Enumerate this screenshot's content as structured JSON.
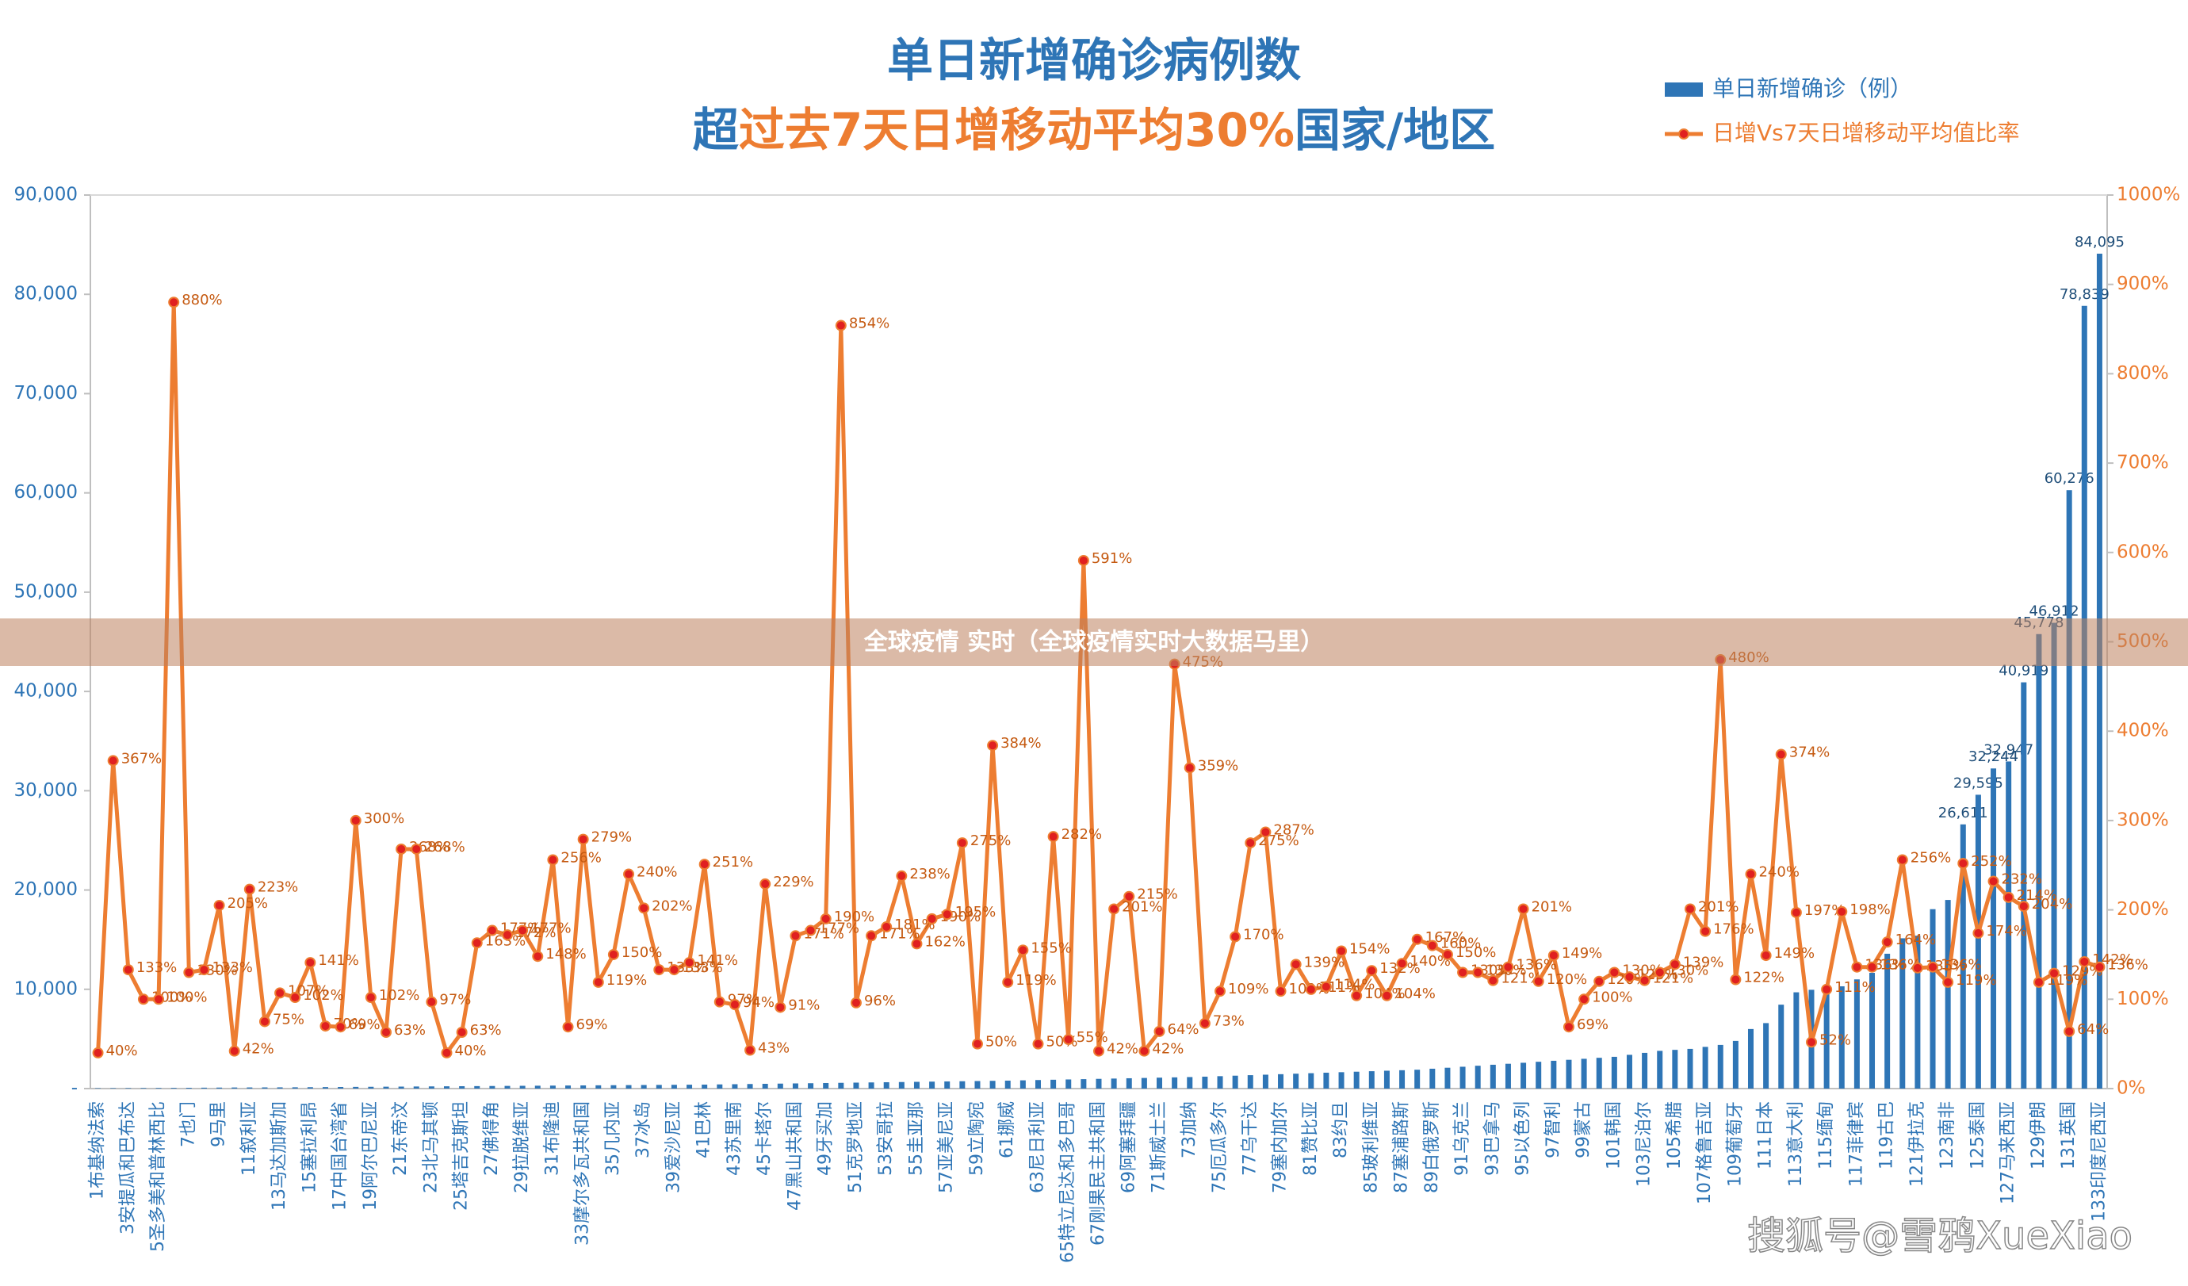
{
  "chart_data": {
    "type": "combo",
    "title": "单日新增确诊病例数",
    "subtitle": [
      {
        "text": "超",
        "color": "#2e75b6"
      },
      {
        "text": "过去7天日增移动平均30%",
        "color": "#ed7d31"
      },
      {
        "text": "国家/地区",
        "color": "#2e75b6"
      }
    ],
    "categories": [
      "1布基纳法索",
      null,
      "3安提瓜和巴布达",
      null,
      "5圣多美和普林西比",
      null,
      "7也门",
      null,
      "9马里",
      null,
      "11叙利亚",
      null,
      "13马达加斯加",
      null,
      "15塞拉利昂",
      null,
      "17中国台湾省",
      null,
      "19阿尔巴尼亚",
      null,
      "21东帝汶",
      null,
      "23北马其顿",
      null,
      "25塔吉克斯坦",
      null,
      "27佛得角",
      null,
      "29拉脱维亚",
      null,
      "31布隆迪",
      null,
      "33摩尔多瓦共和国",
      null,
      "35几内亚",
      null,
      "37冰岛",
      null,
      "39爱沙尼亚",
      null,
      "41巴林",
      null,
      "43苏里南",
      null,
      "45卡塔尔",
      null,
      "47黑山共和国",
      null,
      "49牙买加",
      null,
      "51克罗地亚",
      null,
      "53安哥拉",
      null,
      "55圭亚那",
      null,
      "57亚美尼亚",
      null,
      "59立陶宛",
      null,
      "61挪威",
      null,
      "63尼日利亚",
      null,
      "65特立尼达和多巴哥",
      null,
      "67刚果民主共和国",
      null,
      "69阿塞拜疆",
      null,
      "71斯威士兰",
      null,
      "73加纳",
      null,
      "75厄瓜多尔",
      null,
      "77乌干达",
      null,
      "79塞内加尔",
      null,
      "81赞比亚",
      null,
      "83约旦",
      null,
      "85玻利维亚",
      null,
      "87塞浦路斯",
      null,
      "89白俄罗斯",
      null,
      "91乌克兰",
      null,
      "93巴拿马",
      null,
      "95以色列",
      null,
      "97智利",
      null,
      "99蒙古",
      null,
      "101韩国",
      null,
      "103尼泊尔",
      null,
      "105希腊",
      null,
      "107格鲁吉亚",
      null,
      "109葡萄牙",
      null,
      "111日本",
      null,
      "113意大利",
      null,
      "115缅甸",
      null,
      "117菲律宾",
      null,
      "119古巴",
      null,
      "121伊拉克",
      null,
      "123南非",
      null,
      "125泰国",
      null,
      "127马来西亚",
      null,
      "129伊朗",
      null,
      "131英国",
      null,
      "133印度尼西亚"
    ],
    "series": [
      {
        "name": "单日新增确诊（例）",
        "type": "bar",
        "color": "#2e75b6",
        "values": [
          40,
          45,
          50,
          55,
          60,
          70,
          80,
          90,
          100,
          110,
          115,
          120,
          125,
          130,
          140,
          150,
          160,
          170,
          180,
          190,
          200,
          210,
          220,
          230,
          240,
          250,
          260,
          270,
          280,
          290,
          300,
          310,
          320,
          330,
          340,
          350,
          360,
          370,
          380,
          390,
          400,
          420,
          440,
          460,
          480,
          500,
          520,
          540,
          560,
          580,
          600,
          620,
          640,
          660,
          680,
          700,
          720,
          740,
          760,
          780,
          800,
          830,
          860,
          890,
          920,
          950,
          980,
          1010,
          1040,
          1070,
          1100,
          1130,
          1160,
          1200,
          1250,
          1300,
          1350,
          1400,
          1450,
          1500,
          1550,
          1600,
          1650,
          1700,
          1750,
          1800,
          1850,
          1900,
          2000,
          2100,
          2200,
          2300,
          2400,
          2500,
          2600,
          2700,
          2800,
          2900,
          3000,
          3100,
          3200,
          3400,
          3600,
          3800,
          3900,
          4000,
          4200,
          4400,
          4800,
          6000,
          6595,
          8450,
          9697,
          9950,
          10050,
          10300,
          11000,
          11658,
          13581,
          15138,
          15400,
          18071,
          19000,
          26611,
          29595,
          32244,
          32947,
          40919,
          45778,
          46912,
          60276,
          78839,
          84095
        ],
        "value_labels": [
          null,
          null,
          null,
          null,
          null,
          null,
          null,
          null,
          null,
          null,
          null,
          null,
          null,
          null,
          null,
          null,
          null,
          null,
          null,
          null,
          null,
          null,
          null,
          null,
          null,
          null,
          null,
          null,
          null,
          null,
          null,
          null,
          null,
          null,
          null,
          null,
          null,
          null,
          null,
          null,
          null,
          null,
          null,
          null,
          null,
          null,
          null,
          null,
          null,
          null,
          null,
          null,
          null,
          null,
          null,
          null,
          null,
          null,
          null,
          null,
          null,
          null,
          null,
          null,
          null,
          null,
          null,
          null,
          null,
          null,
          null,
          null,
          null,
          null,
          null,
          null,
          null,
          null,
          null,
          null,
          null,
          null,
          null,
          null,
          null,
          null,
          null,
          null,
          null,
          null,
          null,
          null,
          null,
          null,
          null,
          null,
          null,
          null,
          null,
          null,
          null,
          null,
          null,
          null,
          null,
          null,
          null,
          null,
          null,
          null,
          null,
          null,
          null,
          null,
          null,
          null,
          null,
          null,
          null,
          null,
          null,
          null,
          null,
          "26,611",
          "29,595",
          "32,244",
          "32,947",
          "40,919",
          "45,778",
          "46,912",
          "60,276",
          "78,839",
          "84,095"
        ]
      },
      {
        "name": "日增Vs7天日增移动平均值比率",
        "type": "line",
        "axis": "y2",
        "color": "#ed7d31",
        "marker_color": "#e02020",
        "values": [
          40,
          367,
          133,
          100,
          100,
          880,
          130,
          133,
          205,
          42,
          223,
          75,
          107,
          102,
          141,
          70,
          69,
          300,
          102,
          63,
          268,
          268,
          97,
          40,
          63,
          163,
          177,
          172,
          177,
          148,
          256,
          69,
          279,
          119,
          150,
          240,
          202,
          133,
          133,
          141,
          251,
          97,
          94,
          43,
          229,
          91,
          171,
          177,
          190,
          854,
          96,
          171,
          181,
          238,
          162,
          190,
          195,
          275,
          50,
          384,
          119,
          155,
          50,
          282,
          55,
          591,
          42,
          201,
          215,
          42,
          64,
          475,
          359,
          73,
          109,
          170,
          275,
          287,
          109,
          139,
          111,
          114,
          154,
          104,
          132,
          104,
          140,
          167,
          160,
          150,
          130,
          130,
          121,
          136,
          201,
          120,
          149,
          69,
          100,
          120,
          130,
          125,
          121,
          130,
          139,
          201,
          176,
          480,
          122,
          240,
          149,
          374,
          197,
          52,
          111,
          198,
          136,
          136,
          164,
          256,
          135,
          136,
          119,
          252,
          174,
          232,
          214,
          204,
          119,
          129,
          64,
          142,
          136
        ],
        "value_labels": [
          "40%",
          "367%",
          "133%",
          "100%",
          "100%",
          "880%",
          "130%",
          "133%",
          "205%",
          "42%",
          "223%",
          "75%",
          "107%",
          "102%",
          "141%",
          "70%",
          "69%",
          "300%",
          "102%",
          "63%",
          "268%",
          "268%",
          "97%",
          "40%",
          "63%",
          "163%",
          "177%",
          "172%",
          "177%",
          "148%",
          "256%",
          "69%",
          "279%",
          "119%",
          "150%",
          "240%",
          "202%",
          "133%",
          "133%",
          "141%",
          "251%",
          "97%",
          "94%",
          "43%",
          "229%",
          "91%",
          "171%",
          "177%",
          "190%",
          "854%",
          "96%",
          "171%",
          "181%",
          "238%",
          "162%",
          "190%",
          "195%",
          "275%",
          "50%",
          "384%",
          "119%",
          "155%",
          "50%",
          "282%",
          "55%",
          "591%",
          "42%",
          "201%",
          "215%",
          "42%",
          "64%",
          "475%",
          "359%",
          "73%",
          "109%",
          "170%",
          "275%",
          "287%",
          "109%",
          "139%",
          "111%",
          "114%",
          "154%",
          "104%",
          "132%",
          "104%",
          "140%",
          "167%",
          "160%",
          "150%",
          "130%",
          "130%",
          "121%",
          "136%",
          "201%",
          "120%",
          "149%",
          "69%",
          "100%",
          "120%",
          "130%",
          "125%",
          "121%",
          "130%",
          "139%",
          "201%",
          "176%",
          "480%",
          "122%",
          "240%",
          "149%",
          "374%",
          "197%",
          "52%",
          "111%",
          "198%",
          "136%",
          "136%",
          "164%",
          "256%",
          "135%",
          "136%",
          "119%",
          "252%",
          "174%",
          "232%",
          "214%",
          "204%",
          "119%",
          "129%",
          "64%",
          "142%",
          "136%"
        ]
      }
    ],
    "ylim": [
      0,
      90000
    ],
    "yticks": [
      {
        "value": 0,
        "label": "-"
      },
      {
        "value": 10000,
        "label": "10,000"
      },
      {
        "value": 20000,
        "label": "20,000"
      },
      {
        "value": 30000,
        "label": "30,000"
      },
      {
        "value": 40000,
        "label": "40,000"
      },
      {
        "value": 50000,
        "label": "50,000"
      },
      {
        "value": 60000,
        "label": "60,000"
      },
      {
        "value": 70000,
        "label": "70,000"
      },
      {
        "value": 80000,
        "label": "80,000"
      },
      {
        "value": 90000,
        "label": "90,000"
      }
    ],
    "y2lim": [
      0,
      1000
    ],
    "y2ticks": [
      {
        "value": 0,
        "label": "0%"
      },
      {
        "value": 100,
        "label": "100%"
      },
      {
        "value": 200,
        "label": "200%"
      },
      {
        "value": 300,
        "label": "300%"
      },
      {
        "value": 400,
        "label": "400%"
      },
      {
        "value": 500,
        "label": "500%"
      },
      {
        "value": 600,
        "label": "600%"
      },
      {
        "value": 700,
        "label": "700%"
      },
      {
        "value": 800,
        "label": "800%"
      },
      {
        "value": 900,
        "label": "900%"
      },
      {
        "value": 1000,
        "label": "1000%"
      }
    ],
    "legend": "top-right"
  },
  "overlay_banner": "全球疫情 实时（全球疫情实时大数据马里）",
  "watermark": "搜狐号@雪鸦XueXiao"
}
